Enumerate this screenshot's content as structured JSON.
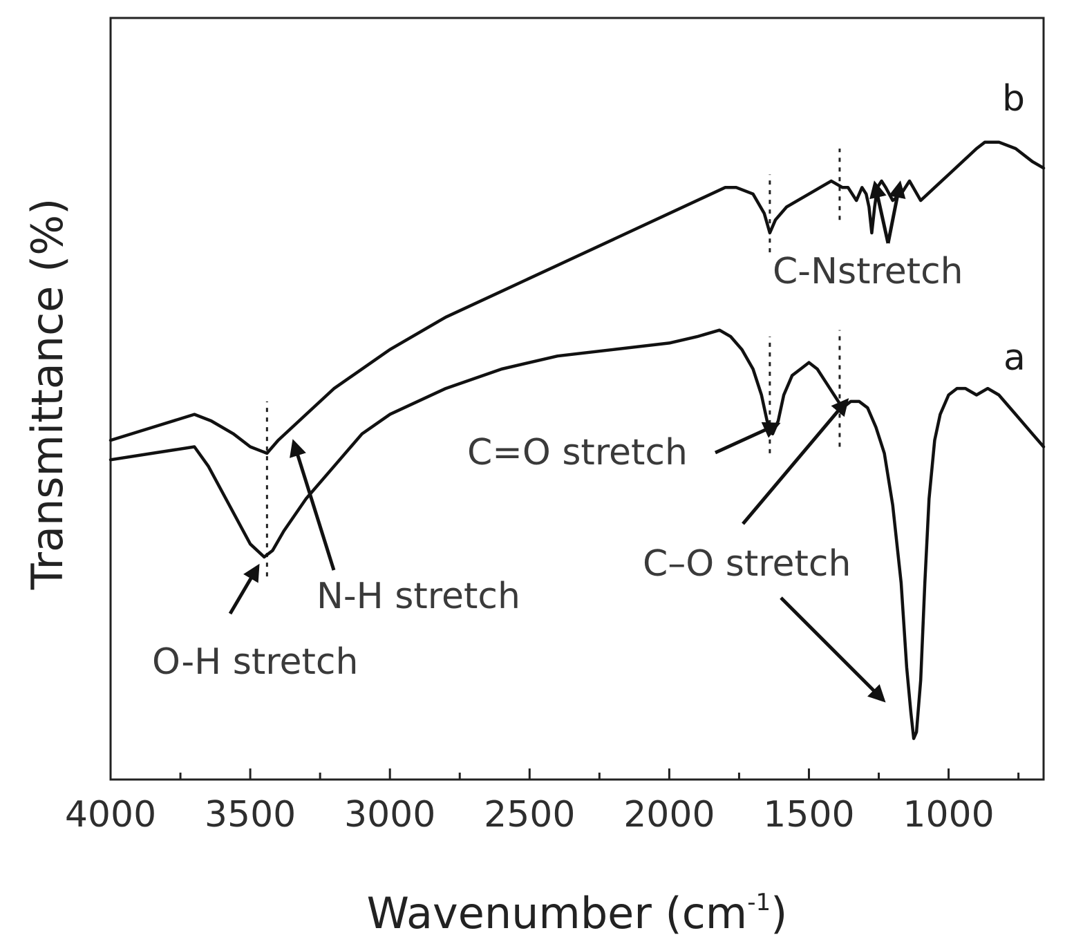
{
  "chart_data": {
    "type": "line",
    "title": "",
    "xlabel": "Wavenumber (cm",
    "xlabel_sup": "-1",
    "xlabel_close": ")",
    "ylabel": "Transmittance (%)",
    "xlim": [
      4000,
      660
    ],
    "x_reversed": true,
    "ylim": [
      0,
      1
    ],
    "y_ticks_labeled": false,
    "x_ticks": [
      4000,
      3500,
      3000,
      2500,
      2000,
      1500,
      1000
    ],
    "x_tick_labels": [
      "4000",
      "3500",
      "3000",
      "2500",
      "2000",
      "1500",
      "1000"
    ],
    "grid": false,
    "series": [
      {
        "name": "b",
        "color": "#111111",
        "x": [
          4000,
          3850,
          3700,
          3640,
          3560,
          3500,
          3440,
          3400,
          3300,
          3200,
          3000,
          2800,
          2600,
          2400,
          2200,
          2000,
          1900,
          1800,
          1760,
          1700,
          1660,
          1640,
          1620,
          1580,
          1540,
          1500,
          1460,
          1420,
          1380,
          1360,
          1330,
          1310,
          1295,
          1285,
          1275,
          1265,
          1255,
          1240,
          1225,
          1200,
          1170,
          1140,
          1100,
          1050,
          1000,
          950,
          900,
          870,
          820,
          760,
          700,
          660
        ],
        "y": [
          0.47,
          0.49,
          0.51,
          0.5,
          0.48,
          0.46,
          0.45,
          0.47,
          0.51,
          0.55,
          0.61,
          0.66,
          0.7,
          0.74,
          0.78,
          0.82,
          0.84,
          0.86,
          0.86,
          0.85,
          0.82,
          0.79,
          0.81,
          0.83,
          0.84,
          0.85,
          0.86,
          0.87,
          0.86,
          0.86,
          0.84,
          0.86,
          0.85,
          0.83,
          0.79,
          0.83,
          0.86,
          0.87,
          0.86,
          0.84,
          0.85,
          0.87,
          0.84,
          0.86,
          0.88,
          0.9,
          0.92,
          0.93,
          0.93,
          0.92,
          0.9,
          0.89
        ]
      },
      {
        "name": "a",
        "color": "#111111",
        "x": [
          4000,
          3850,
          3700,
          3650,
          3600,
          3550,
          3500,
          3450,
          3420,
          3380,
          3300,
          3200,
          3100,
          3000,
          2800,
          2600,
          2400,
          2200,
          2000,
          1900,
          1820,
          1780,
          1740,
          1700,
          1670,
          1650,
          1630,
          1610,
          1590,
          1560,
          1530,
          1500,
          1470,
          1440,
          1410,
          1380,
          1350,
          1320,
          1290,
          1260,
          1230,
          1200,
          1170,
          1150,
          1135,
          1125,
          1115,
          1100,
          1085,
          1070,
          1050,
          1030,
          1000,
          970,
          940,
          900,
          860,
          820,
          760,
          700,
          660
        ],
        "y": [
          0.44,
          0.45,
          0.46,
          0.43,
          0.39,
          0.35,
          0.31,
          0.29,
          0.3,
          0.33,
          0.38,
          0.43,
          0.48,
          0.51,
          0.55,
          0.58,
          0.6,
          0.61,
          0.62,
          0.63,
          0.64,
          0.63,
          0.61,
          0.58,
          0.54,
          0.5,
          0.48,
          0.5,
          0.54,
          0.57,
          0.58,
          0.59,
          0.58,
          0.56,
          0.54,
          0.52,
          0.53,
          0.53,
          0.52,
          0.49,
          0.45,
          0.37,
          0.25,
          0.12,
          0.05,
          0.01,
          0.02,
          0.1,
          0.25,
          0.38,
          0.47,
          0.51,
          0.54,
          0.55,
          0.55,
          0.54,
          0.55,
          0.54,
          0.51,
          0.48,
          0.46
        ]
      }
    ],
    "series_labels": [
      {
        "text": "b",
        "near_x": 900,
        "near_y": 0.98
      },
      {
        "text": "a",
        "near_x": 710,
        "near_y": 0.59
      }
    ],
    "reference_lines_x": [
      {
        "series": "b",
        "x": 1640,
        "from": 0.76,
        "to": 0.88
      },
      {
        "series": "b",
        "x": 1390,
        "from": 0.81,
        "to": 0.92
      },
      {
        "series": "a",
        "x": 1640,
        "from": 0.45,
        "to": 0.63
      },
      {
        "series": "a",
        "x": 1390,
        "from": 0.46,
        "to": 0.64
      },
      {
        "series": "both",
        "x": 3440,
        "from": 0.26,
        "to": 0.53
      }
    ],
    "annotations": [
      {
        "id": "oh",
        "text": "O-H stretch"
      },
      {
        "id": "nh",
        "text": "N-H stretch"
      },
      {
        "id": "co_double",
        "text": "C=O stretch"
      },
      {
        "id": "co_single",
        "text": "C–O stretch"
      },
      {
        "id": "cn",
        "text": "C-Nstretch"
      }
    ]
  }
}
